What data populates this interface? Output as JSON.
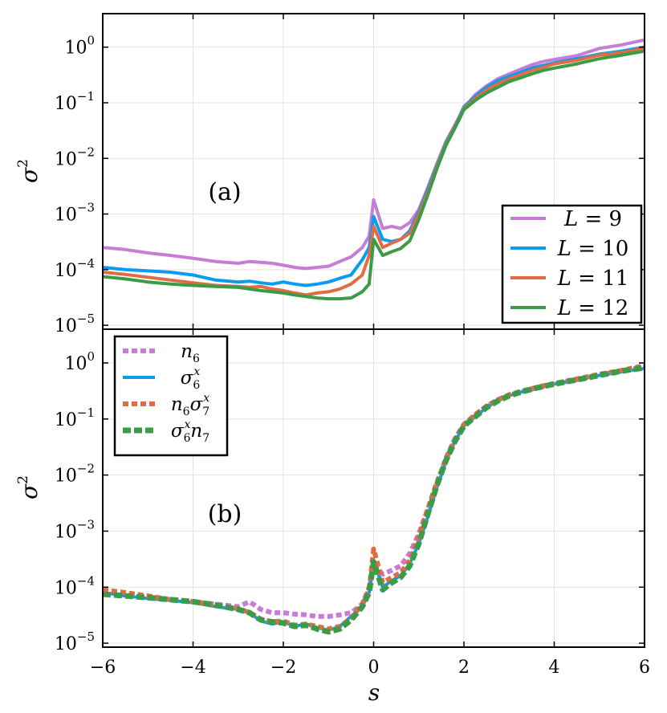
{
  "chart_data": [
    {
      "type": "line",
      "panel_label": "(a)",
      "ylabel_base": "σ",
      "ylabel_sup": "2",
      "xlabel": "s",
      "xlim": [
        -6,
        6
      ],
      "ylim": [
        8.5e-06,
        4.0
      ],
      "yscale": "log",
      "grid": true,
      "legend_position": "bottom-right",
      "yticks": [
        {
          "base": "10",
          "exp": "0"
        },
        {
          "base": "10",
          "exp": "−1"
        },
        {
          "base": "10",
          "exp": "−2"
        },
        {
          "base": "10",
          "exp": "−3"
        },
        {
          "base": "10",
          "exp": "−4"
        },
        {
          "base": "10",
          "exp": "−5"
        }
      ],
      "x": [
        -6,
        -5.5,
        -5,
        -4.5,
        -4,
        -3.5,
        -3,
        -2.75,
        -2.5,
        -2.25,
        -2,
        -1.75,
        -1.5,
        -1.25,
        -1,
        -0.75,
        -0.5,
        -0.25,
        -0.1,
        0,
        0.2,
        0.4,
        0.6,
        0.8,
        1.0,
        1.2,
        1.4,
        1.6,
        1.8,
        2.0,
        2.25,
        2.5,
        2.75,
        3.0,
        3.25,
        3.5,
        3.75,
        4.0,
        4.5,
        5.0,
        5.5,
        6.0
      ],
      "series": [
        {
          "name": "L = 9",
          "legend_math": "L",
          "legend_value": "9",
          "color": "#c77cd6",
          "style": "solid",
          "values": [
            0.00025,
            0.00023,
            0.0002,
            0.00018,
            0.00016,
            0.00014,
            0.00013,
            0.00014,
            0.000135,
            0.00013,
            0.00012,
            0.00011,
            0.000105,
            0.00011,
            0.000115,
            0.00014,
            0.00017,
            0.00025,
            0.0004,
            0.0018,
            0.00055,
            0.0006,
            0.00055,
            0.0007,
            0.0012,
            0.003,
            0.008,
            0.02,
            0.04,
            0.08,
            0.14,
            0.2,
            0.27,
            0.33,
            0.4,
            0.48,
            0.55,
            0.6,
            0.7,
            0.95,
            1.1,
            1.35
          ]
        },
        {
          "name": "L = 10",
          "legend_math": "L",
          "legend_value": "10",
          "color": "#0a9cf0",
          "style": "solid",
          "values": [
            0.00011,
            0.0001,
            9.5e-05,
            9e-05,
            8e-05,
            6.5e-05,
            6e-05,
            6.2e-05,
            5.8e-05,
            5.5e-05,
            6e-05,
            5.5e-05,
            5.2e-05,
            5.5e-05,
            6e-05,
            7e-05,
            8e-05,
            0.00015,
            0.00025,
            0.0009,
            0.00035,
            0.00032,
            0.00035,
            0.0005,
            0.0011,
            0.0028,
            0.0075,
            0.019,
            0.038,
            0.085,
            0.13,
            0.19,
            0.25,
            0.3,
            0.35,
            0.42,
            0.47,
            0.52,
            0.62,
            0.75,
            0.85,
            1.0
          ]
        },
        {
          "name": "L = 11",
          "legend_math": "L",
          "legend_value": "11",
          "color": "#e06c45",
          "style": "solid",
          "values": [
            9e-05,
            8.2e-05,
            7.3e-05,
            6.5e-05,
            5.8e-05,
            5.2e-05,
            5e-05,
            4.8e-05,
            5e-05,
            4.5e-05,
            4.2e-05,
            3.8e-05,
            3.5e-05,
            3.8e-05,
            4e-05,
            4.5e-05,
            5.5e-05,
            8e-05,
            0.00018,
            0.0006,
            0.00025,
            0.0003,
            0.00035,
            0.00045,
            0.001,
            0.0025,
            0.007,
            0.018,
            0.037,
            0.08,
            0.12,
            0.17,
            0.22,
            0.27,
            0.32,
            0.38,
            0.43,
            0.5,
            0.58,
            0.72,
            0.8,
            0.95
          ]
        },
        {
          "name": "L = 12",
          "legend_math": "L",
          "legend_value": "12",
          "color": "#3c9b47",
          "style": "solid",
          "values": [
            7.5e-05,
            6.8e-05,
            6e-05,
            5.5e-05,
            5.2e-05,
            5e-05,
            4.8e-05,
            4.5e-05,
            4.2e-05,
            4e-05,
            3.8e-05,
            3.5e-05,
            3.3e-05,
            3.1e-05,
            3e-05,
            3e-05,
            3.1e-05,
            4e-05,
            5.5e-05,
            0.00035,
            0.00018,
            0.00021,
            0.00024,
            0.00033,
            0.0008,
            0.0022,
            0.0065,
            0.017,
            0.035,
            0.075,
            0.11,
            0.15,
            0.19,
            0.24,
            0.28,
            0.33,
            0.38,
            0.42,
            0.5,
            0.62,
            0.72,
            0.85
          ]
        }
      ]
    },
    {
      "type": "line",
      "panel_label": "(b)",
      "ylabel_base": "σ",
      "ylabel_sup": "2",
      "xlabel": "s",
      "xlim": [
        -6,
        6
      ],
      "ylim": [
        8.5e-06,
        4.0
      ],
      "yscale": "log",
      "grid": true,
      "legend_position": "top-left",
      "yticks": [
        {
          "base": "10",
          "exp": "0"
        },
        {
          "base": "10",
          "exp": "−1"
        },
        {
          "base": "10",
          "exp": "−2"
        },
        {
          "base": "10",
          "exp": "−3"
        },
        {
          "base": "10",
          "exp": "−4"
        },
        {
          "base": "10",
          "exp": "−5"
        }
      ],
      "xticks": [
        "−6",
        "−4",
        "−2",
        "0",
        "2",
        "4",
        "6"
      ],
      "xtick_values": [
        -6,
        -4,
        -2,
        0,
        2,
        4,
        6
      ],
      "x": [
        -6,
        -5.5,
        -5,
        -4.5,
        -4,
        -3.5,
        -3,
        -2.75,
        -2.5,
        -2.25,
        -2,
        -1.75,
        -1.5,
        -1.25,
        -1,
        -0.75,
        -0.5,
        -0.25,
        -0.1,
        0,
        0.2,
        0.4,
        0.6,
        0.8,
        1.0,
        1.2,
        1.4,
        1.6,
        1.8,
        2.0,
        2.25,
        2.5,
        2.75,
        3.0,
        3.25,
        3.5,
        3.75,
        4.0,
        4.5,
        5.0,
        5.5,
        6.0
      ],
      "series": [
        {
          "name": "n6",
          "legend_parts": [
            "n",
            "6",
            "",
            "",
            "",
            ""
          ],
          "color": "#c77cd6",
          "style": "dotted",
          "values": [
            8.5e-05,
            7.5e-05,
            6.8e-05,
            6e-05,
            5.5e-05,
            5e-05,
            4.5e-05,
            5.5e-05,
            4e-05,
            3.5e-05,
            3.5e-05,
            3.3e-05,
            3.2e-05,
            3e-05,
            3e-05,
            3.2e-05,
            3.5e-05,
            5e-05,
            0.0001,
            0.00025,
            0.00017,
            0.0002,
            0.00024,
            0.0004,
            0.0009,
            0.0025,
            0.007,
            0.02,
            0.045,
            0.08,
            0.12,
            0.17,
            0.22,
            0.27,
            0.3,
            0.34,
            0.38,
            0.42,
            0.5,
            0.62,
            0.72,
            0.85
          ]
        },
        {
          "name": "σ6x",
          "legend_parts": [
            "σ",
            "6",
            "x",
            "",
            "",
            ""
          ],
          "color": "#0a9cf0",
          "style": "solid",
          "values": [
            8e-05,
            7e-05,
            6.3e-05,
            5.8e-05,
            5.3e-05,
            4.5e-05,
            4e-05,
            3.5e-05,
            2.5e-05,
            2.2e-05,
            2.4e-05,
            2e-05,
            2.2e-05,
            1.9e-05,
            1.7e-05,
            2e-05,
            3e-05,
            4.5e-05,
            8e-05,
            0.0003,
            0.0001,
            0.00013,
            0.00016,
            0.00026,
            0.0006,
            0.0018,
            0.006,
            0.017,
            0.04,
            0.075,
            0.11,
            0.16,
            0.21,
            0.26,
            0.3,
            0.34,
            0.38,
            0.42,
            0.5,
            0.6,
            0.7,
            0.8
          ]
        },
        {
          "name": "n6σ7x",
          "legend_parts": [
            "n",
            "6",
            "",
            "σ",
            "7",
            "x"
          ],
          "color": "#e06c45",
          "style": "dotted",
          "values": [
            9e-05,
            8e-05,
            7e-05,
            6e-05,
            5.5e-05,
            4.7e-05,
            4.2e-05,
            3.5e-05,
            2.7e-05,
            2.4e-05,
            2.5e-05,
            2.1e-05,
            2.2e-05,
            2e-05,
            1.8e-05,
            2e-05,
            2.8e-05,
            5e-05,
            9e-05,
            0.00048,
            0.00012,
            0.00015,
            0.00018,
            0.0003,
            0.0008,
            0.0025,
            0.0075,
            0.019,
            0.042,
            0.08,
            0.12,
            0.17,
            0.22,
            0.27,
            0.31,
            0.35,
            0.39,
            0.43,
            0.52,
            0.63,
            0.74,
            0.9
          ]
        },
        {
          "name": "σ6xn7",
          "legend_parts": [
            "σ",
            "6",
            "x",
            "n",
            "7",
            ""
          ],
          "color": "#3c9b47",
          "style": "dashed",
          "values": [
            7.5e-05,
            7e-05,
            6.5e-05,
            6e-05,
            5.5e-05,
            4.8e-05,
            4e-05,
            3.5e-05,
            2.6e-05,
            2.4e-05,
            2.3e-05,
            2e-05,
            2.1e-05,
            1.8e-05,
            1.6e-05,
            1.8e-05,
            2.6e-05,
            4.5e-05,
            8e-05,
            0.00028,
            9e-05,
            0.00012,
            0.00015,
            0.00024,
            0.0006,
            0.002,
            0.0065,
            0.018,
            0.04,
            0.075,
            0.11,
            0.16,
            0.21,
            0.26,
            0.3,
            0.34,
            0.38,
            0.42,
            0.5,
            0.6,
            0.72,
            0.82
          ]
        }
      ]
    }
  ]
}
